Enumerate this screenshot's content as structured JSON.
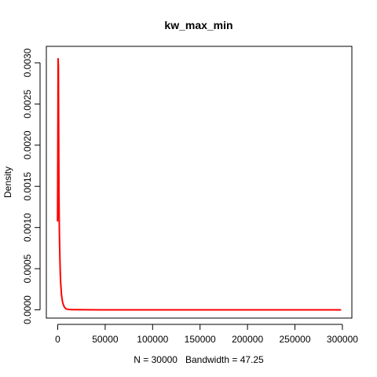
{
  "chart_data": {
    "type": "line",
    "title": "kw_max_min",
    "xlabel": "N = 30000   Bandwidth = 47.25",
    "ylabel": "Density",
    "xlim": [
      -12000,
      310000
    ],
    "ylim": [
      -0.0001,
      0.0032
    ],
    "xticks": [
      0,
      50000,
      100000,
      150000,
      200000,
      250000,
      300000
    ],
    "xtick_labels": [
      "0",
      "50000",
      "100000",
      "150000",
      "200000",
      "250000",
      "300000"
    ],
    "yticks": [
      0.0,
      0.0005,
      0.001,
      0.0015,
      0.002,
      0.0025,
      0.003
    ],
    "ytick_labels": [
      "0.0000",
      "0.0005",
      "0.0010",
      "0.0015",
      "0.0020",
      "0.0025",
      "0.0030"
    ],
    "grid": false,
    "series": [
      {
        "color": "#ff0000",
        "x": [
          -180,
          0,
          200,
          400,
          700,
          1000,
          1300,
          1600,
          2000,
          2500,
          3000,
          4000,
          5000,
          6000,
          7000,
          8000,
          9000,
          10000,
          12000,
          15000,
          20000,
          30000,
          50000,
          80000,
          120000,
          160000,
          200000,
          240000,
          280000,
          298000
        ],
        "y": [
          0.00108,
          0.00165,
          0.00235,
          0.00305,
          0.00295,
          0.0022,
          0.00145,
          0.00105,
          0.00078,
          0.00052,
          0.00035,
          0.00018,
          0.0001,
          6e-05,
          3.5e-05,
          2e-05,
          1.2e-05,
          8e-06,
          5e-06,
          3e-06,
          2e-06,
          1e-06,
          5e-07,
          3e-07,
          2e-07,
          1e-07,
          1e-07,
          1e-07,
          1e-07,
          0.0
        ]
      }
    ]
  }
}
